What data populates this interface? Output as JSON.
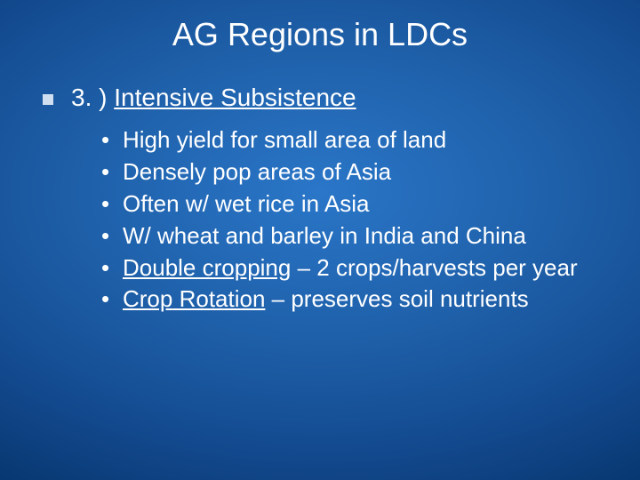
{
  "slide": {
    "title": "AG Regions in LDCs",
    "background_gradient": {
      "center": "#2a76c8",
      "mid": "#134a8f",
      "edge": "#052c5c"
    },
    "text_color": "#ffffff",
    "title_fontsize": 36,
    "body_fontsize_level1": 28,
    "body_fontsize_level2": 26,
    "font_family": "Verdana",
    "heading": {
      "prefix": "3. ) ",
      "text": "Intensive Subsistence",
      "underlined": true
    },
    "bullets": [
      {
        "text": "High yield for small area of land"
      },
      {
        "text": "Densely pop areas of Asia"
      },
      {
        "text": "Often w/ wet rice in Asia"
      },
      {
        "text": "W/ wheat and barley in India and China"
      },
      {
        "underlined_part": "Double cropping",
        "rest": " – 2 crops/harvests per year"
      },
      {
        "underlined_part": "Crop Rotation",
        "rest": " – preserves soil nutrients"
      }
    ],
    "square_bullet_color": "#d0dff0"
  }
}
